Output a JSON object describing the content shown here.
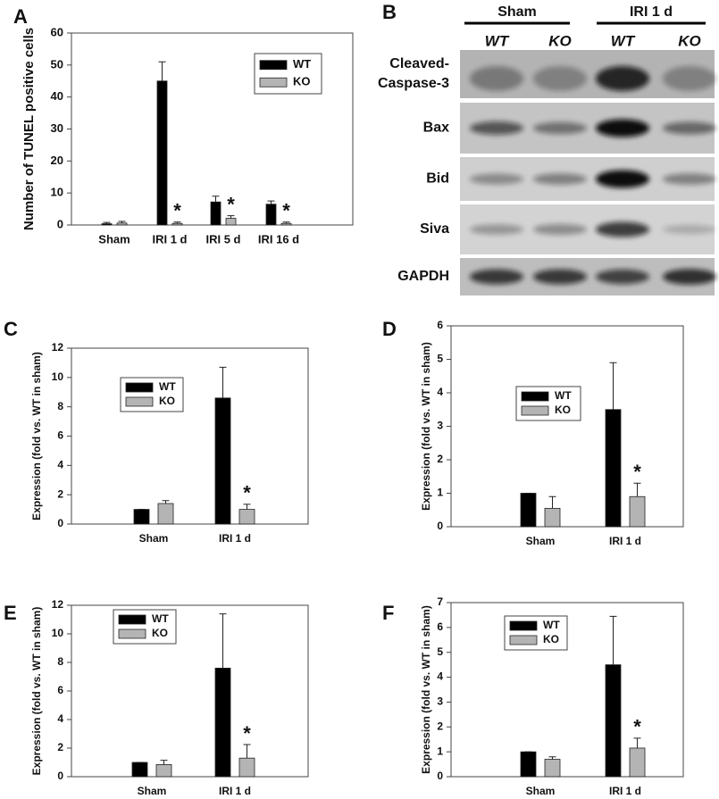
{
  "chart_data": [
    {
      "label": "A",
      "type": "bar",
      "ylabel": "Number of TUNEL positive cells",
      "categories": [
        "Sham",
        "IRI 1 d",
        "IRI 5 d",
        "IRI 16 d"
      ],
      "series": [
        {
          "name": "WT",
          "color": "#000000",
          "values": [
            0.4,
            45,
            7.2,
            6.5
          ],
          "errors": [
            0.4,
            6,
            1.8,
            1
          ],
          "annotations": [
            null,
            null,
            null,
            null
          ]
        },
        {
          "name": "KO",
          "color": "#b4b4b4",
          "values": [
            0.6,
            0.5,
            2.1,
            0.5
          ],
          "errors": [
            0.5,
            0.4,
            0.8,
            0.4
          ],
          "annotations": [
            null,
            "*",
            "*",
            "*"
          ]
        }
      ],
      "ylim": [
        0,
        60
      ],
      "yticks": [
        0,
        10,
        20,
        30,
        40,
        50,
        60
      ],
      "legend": "upper right"
    },
    {
      "label": "C",
      "type": "bar",
      "ylabel": "Expression (fold vs. WT in sham)",
      "categories": [
        "Sham",
        "IRI 1 d"
      ],
      "series": [
        {
          "name": "WT",
          "color": "#000000",
          "values": [
            1,
            8.6
          ],
          "errors": [
            0,
            2.1
          ],
          "annotations": [
            null,
            null
          ]
        },
        {
          "name": "KO",
          "color": "#b4b4b4",
          "values": [
            1.4,
            1
          ],
          "errors": [
            0.2,
            0.35
          ],
          "annotations": [
            null,
            "*"
          ]
        }
      ],
      "ylim": [
        0,
        12
      ],
      "yticks": [
        0,
        2,
        4,
        6,
        8,
        10,
        12
      ],
      "legend": "upper left"
    },
    {
      "label": "D",
      "type": "bar",
      "ylabel": "Expression (fold vs. WT in sham)",
      "categories": [
        "Sham",
        "IRI 1 d"
      ],
      "series": [
        {
          "name": "WT",
          "color": "#000000",
          "values": [
            1,
            3.5
          ],
          "errors": [
            0,
            1.4
          ],
          "annotations": [
            null,
            null
          ]
        },
        {
          "name": "KO",
          "color": "#b4b4b4",
          "values": [
            0.55,
            0.9
          ],
          "errors": [
            0.35,
            0.4
          ],
          "annotations": [
            null,
            "*"
          ]
        }
      ],
      "ylim": [
        0,
        6
      ],
      "yticks": [
        0,
        1,
        2,
        3,
        4,
        5,
        6
      ],
      "legend": "upper left"
    },
    {
      "label": "E",
      "type": "bar",
      "ylabel": "Expression (fold vs. WT in sham)",
      "categories": [
        "Sham",
        "IRI 1 d"
      ],
      "series": [
        {
          "name": "WT",
          "color": "#000000",
          "values": [
            1,
            7.6
          ],
          "errors": [
            0,
            3.8
          ],
          "annotations": [
            null,
            null
          ]
        },
        {
          "name": "KO",
          "color": "#b4b4b4",
          "values": [
            0.85,
            1.3
          ],
          "errors": [
            0.3,
            0.95
          ],
          "annotations": [
            null,
            "*"
          ]
        }
      ],
      "ylim": [
        0,
        12
      ],
      "yticks": [
        0,
        2,
        4,
        6,
        8,
        10,
        12
      ],
      "legend": "upper left"
    },
    {
      "label": "F",
      "type": "bar",
      "ylabel": "Expression (fold vs. WT in sham)",
      "categories": [
        "Sham",
        "IRI 1 d"
      ],
      "series": [
        {
          "name": "WT",
          "color": "#000000",
          "values": [
            1,
            4.5
          ],
          "errors": [
            0,
            1.95
          ],
          "annotations": [
            null,
            null
          ]
        },
        {
          "name": "KO",
          "color": "#b4b4b4",
          "values": [
            0.7,
            1.15
          ],
          "errors": [
            0.1,
            0.4
          ],
          "annotations": [
            null,
            "*"
          ]
        }
      ],
      "ylim": [
        0,
        7
      ],
      "yticks": [
        0,
        1,
        2,
        3,
        4,
        5,
        6,
        7
      ],
      "legend": "upper left"
    }
  ],
  "blot": {
    "label": "B",
    "groups": [
      "Sham",
      "IRI 1 d"
    ],
    "lanes": [
      "WT",
      "KO",
      "WT",
      "KO"
    ],
    "rows": [
      [
        "Cleaved-",
        "Caspase-3"
      ],
      [
        "Bax"
      ],
      [
        "Bid"
      ],
      [
        "Siva"
      ],
      [
        "GAPDH"
      ]
    ]
  }
}
